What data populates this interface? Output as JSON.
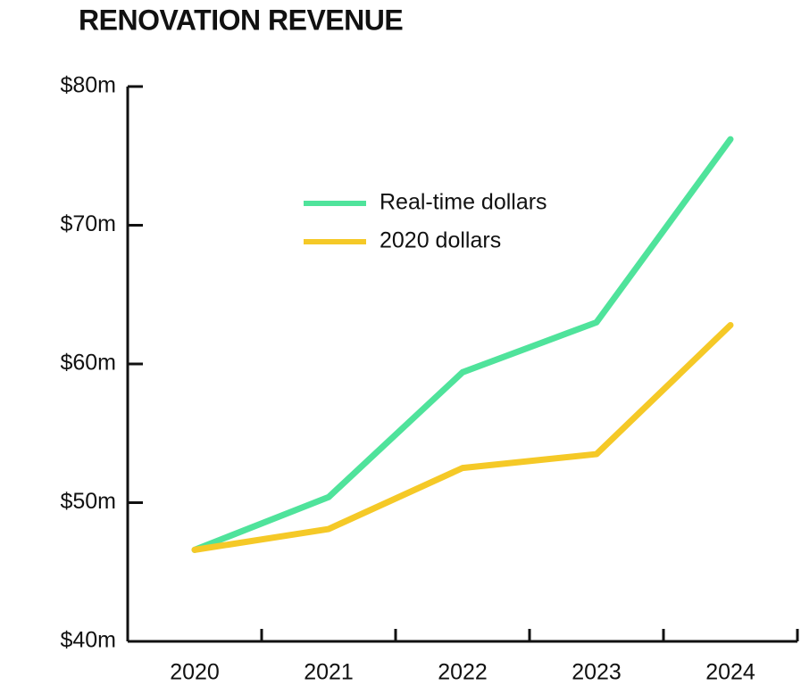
{
  "chart_data": {
    "type": "line",
    "title": "RENOVATION REVENUE",
    "categories": [
      "2020",
      "2021",
      "2022",
      "2023",
      "2024"
    ],
    "series": [
      {
        "name": "Real-time dollars",
        "color": "#4fe39b",
        "values": [
          46.6,
          50.4,
          59.4,
          63.0,
          76.2
        ]
      },
      {
        "name": "2020 dollars",
        "color": "#f5c927",
        "values": [
          46.6,
          48.1,
          52.5,
          53.5,
          62.8
        ]
      }
    ],
    "ylim": [
      40,
      80
    ],
    "yticks": [
      {
        "value": 40,
        "label": "$40m"
      },
      {
        "value": 50,
        "label": "$50m"
      },
      {
        "value": 60,
        "label": "$60m"
      },
      {
        "value": 70,
        "label": "$70m"
      },
      {
        "value": 80,
        "label": "$80m"
      }
    ],
    "grid": false
  }
}
